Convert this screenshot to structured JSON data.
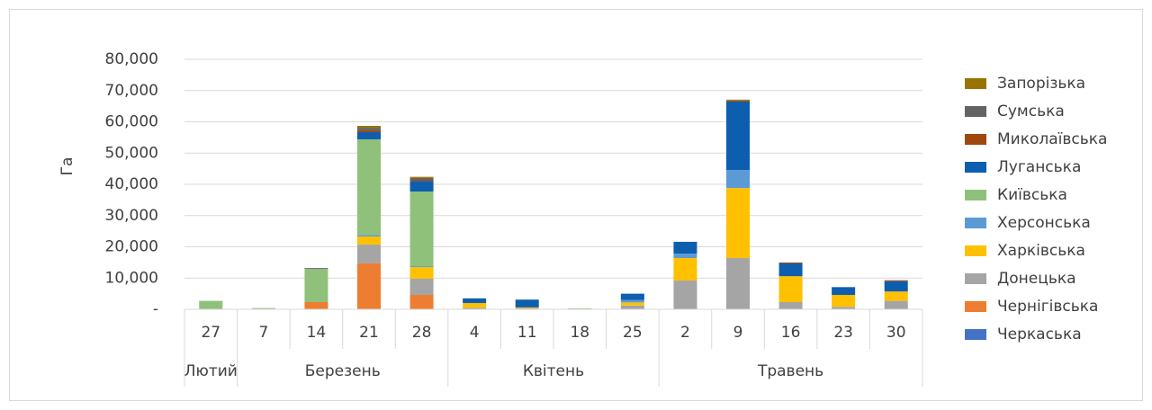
{
  "chart_data": {
    "type": "stacked_bar",
    "y_label": "Га",
    "categories": [
      "27",
      "7",
      "14",
      "21",
      "28",
      "4",
      "11",
      "18",
      "25",
      "2",
      "9",
      "16",
      "23",
      "30"
    ],
    "groups": [
      {
        "label": "Лютий",
        "span": 1
      },
      {
        "label": "Березень",
        "span": 4
      },
      {
        "label": "Квітень",
        "span": 4
      },
      {
        "label": "Травень",
        "span": 5
      }
    ],
    "series": [
      {
        "name": "Черкаська",
        "color": "#4472c4",
        "values": [
          0,
          0,
          0,
          0,
          0,
          0,
          0,
          0,
          0,
          0,
          0,
          0,
          0,
          0
        ]
      },
      {
        "name": "Чернігівська",
        "color": "#ed7d31",
        "values": [
          0,
          0,
          2300,
          14700,
          4600,
          0,
          0,
          0,
          0,
          0,
          0,
          0,
          0,
          0
        ]
      },
      {
        "name": "Донецька",
        "color": "#a5a5a5",
        "values": [
          0,
          0,
          0,
          6000,
          5200,
          500,
          300,
          0,
          1200,
          9200,
          16400,
          2300,
          800,
          2700
        ]
      },
      {
        "name": "Харківська",
        "color": "#ffc000",
        "values": [
          0,
          0,
          0,
          2600,
          3700,
          1500,
          300,
          0,
          1000,
          7200,
          22400,
          8300,
          3800,
          3000
        ]
      },
      {
        "name": "Херсонська",
        "color": "#5b9bd5",
        "values": [
          0,
          0,
          0,
          500,
          300,
          0,
          0,
          0,
          800,
          1400,
          5800,
          0,
          0,
          0
        ]
      },
      {
        "name": "Київська",
        "color": "#8fc17a",
        "values": [
          2700,
          400,
          10600,
          30600,
          23900,
          0,
          0,
          300,
          0,
          0,
          0,
          0,
          0,
          0
        ]
      },
      {
        "name": "Луганська",
        "color": "#0d5eaf",
        "values": [
          0,
          0,
          0,
          2300,
          3400,
          1500,
          2500,
          0,
          2000,
          3800,
          21900,
          4100,
          2500,
          3300
        ]
      },
      {
        "name": "Миколаївська",
        "color": "#9e480e",
        "values": [
          0,
          0,
          0,
          600,
          500,
          0,
          0,
          0,
          0,
          0,
          300,
          300,
          0,
          300
        ]
      },
      {
        "name": "Сумська",
        "color": "#636363",
        "values": [
          0,
          0,
          300,
          800,
          500,
          0,
          0,
          0,
          0,
          0,
          0,
          0,
          0,
          0
        ]
      },
      {
        "name": "Запорізька",
        "color": "#997300",
        "values": [
          0,
          0,
          0,
          600,
          300,
          0,
          0,
          0,
          0,
          0,
          300,
          0,
          0,
          0
        ]
      }
    ],
    "ylim": [
      0,
      80000
    ],
    "yticks": [
      {
        "value": 0,
        "label": "-"
      },
      {
        "value": 10000,
        "label": "10,000"
      },
      {
        "value": 20000,
        "label": "20,000"
      },
      {
        "value": 30000,
        "label": "30,000"
      },
      {
        "value": 40000,
        "label": "40,000"
      },
      {
        "value": 50000,
        "label": "50,000"
      },
      {
        "value": 60000,
        "label": "60,000"
      },
      {
        "value": 70000,
        "label": "70,000"
      },
      {
        "value": 80000,
        "label": "80,000"
      }
    ],
    "grid": true,
    "legend": "right"
  }
}
